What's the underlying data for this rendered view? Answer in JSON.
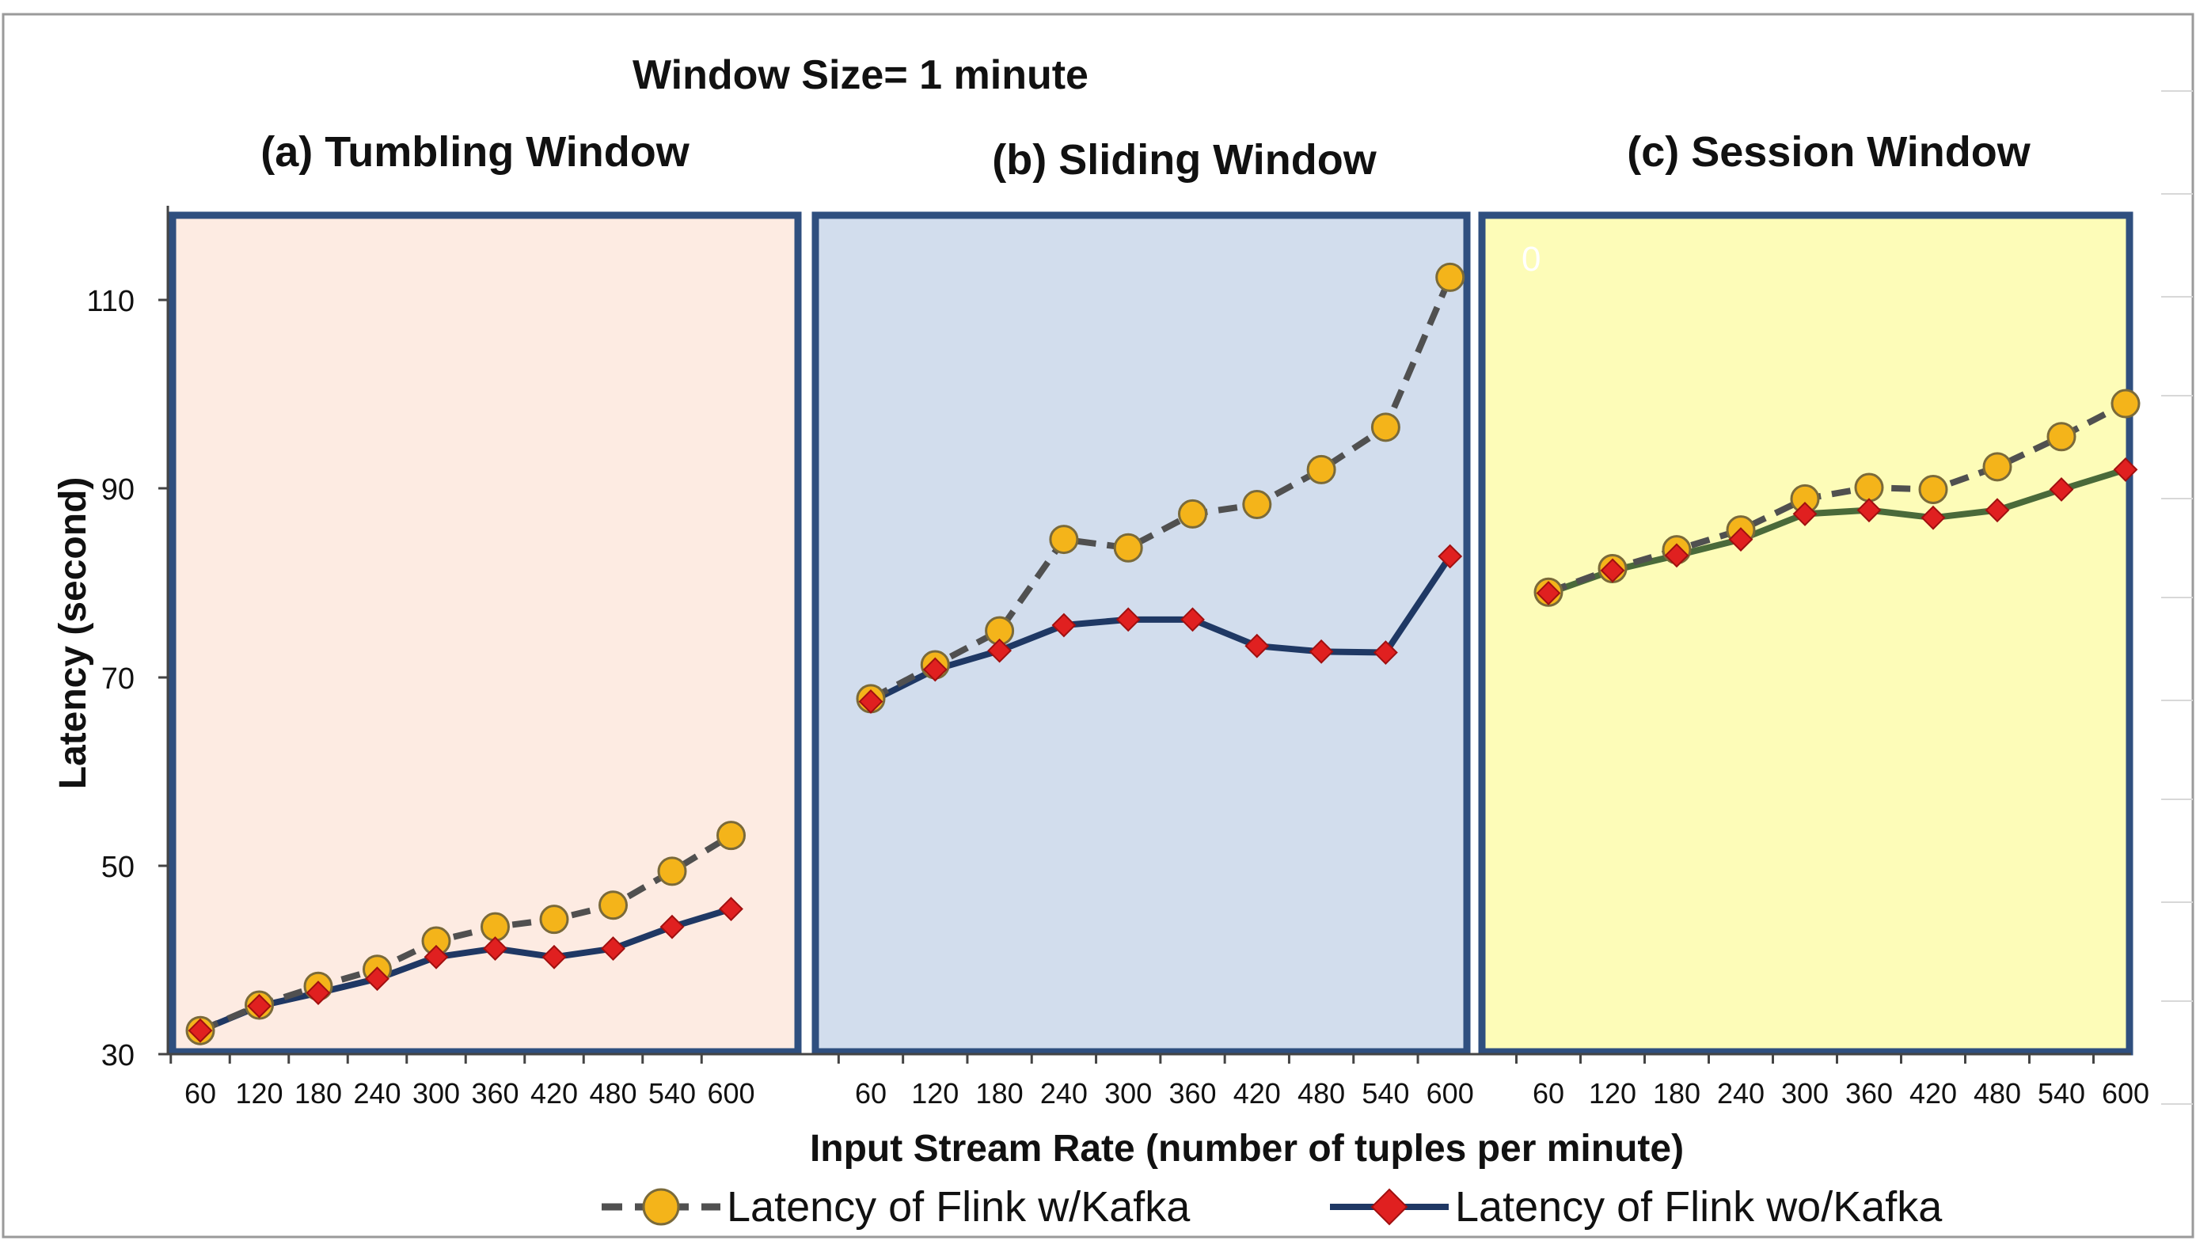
{
  "chart_data": {
    "type": "line",
    "title": "Window Size= 1 minute",
    "xlabel": "Input Stream Rate (number  of tuples per minute)",
    "ylabel": "Latency  (second)",
    "ylim": [
      30,
      120
    ],
    "yticks": [
      30,
      50,
      70,
      90,
      110
    ],
    "categories": [
      "60",
      "120",
      "180",
      "240",
      "300",
      "360",
      "420",
      "480",
      "540",
      "600"
    ],
    "panels": [
      {
        "title": "(a) Tumbling  Window",
        "background": "#fdebe2",
        "series": [
          {
            "name": "Latency of Flink w/Kafka",
            "values": [
              32.5,
              35.2,
              37.2,
              39.0,
              42.0,
              43.5,
              44.3,
              45.8,
              49.4,
              53.2
            ]
          },
          {
            "name": "Latency of Flink wo/Kafka",
            "values": [
              32.5,
              35.1,
              36.5,
              38.0,
              40.3,
              41.2,
              40.3,
              41.2,
              43.5,
              45.4
            ]
          }
        ]
      },
      {
        "title": "(b) Sliding Window",
        "background": "#d2dded",
        "series": [
          {
            "name": "Latency of Flink w/Kafka",
            "values": [
              67.7,
              71.3,
              74.9,
              84.6,
              83.7,
              87.3,
              88.3,
              92.0,
              96.5,
              112.4
            ]
          },
          {
            "name": "Latency of Flink wo/Kafka",
            "values": [
              67.4,
              70.8,
              72.8,
              75.5,
              76.1,
              76.1,
              73.3,
              72.7,
              72.6,
              82.8
            ]
          }
        ]
      },
      {
        "title": "(c) Session Window",
        "background": "#fdfcb8",
        "series": [
          {
            "name": "Latency of Flink w/Kafka",
            "values": [
              79.0,
              81.5,
              83.5,
              85.6,
              88.9,
              90.1,
              89.9,
              92.3,
              95.5,
              99.0
            ]
          },
          {
            "name": "Latency of Flink wo/Kafka",
            "values": [
              78.9,
              81.3,
              82.9,
              84.6,
              87.3,
              87.7,
              86.9,
              87.7,
              89.9,
              92.0
            ]
          }
        ]
      }
    ],
    "legend": [
      {
        "label": "Latency of Flink w/Kafka",
        "marker": "circle",
        "line": "dashed",
        "color": "#f4b41a"
      },
      {
        "label": "Latency of Flink wo/Kafka",
        "marker": "diamond",
        "line": "solid",
        "color": "#e02020"
      }
    ],
    "stray_label": "0"
  },
  "colors": {
    "frame": "#2f4f7f",
    "kafka_line": "#505050",
    "kafka_marker": "#f4b41a",
    "nokafka_line_ab": "#1f3864",
    "nokafka_line_c": "#4a6a3a",
    "nokafka_marker": "#e02020"
  }
}
